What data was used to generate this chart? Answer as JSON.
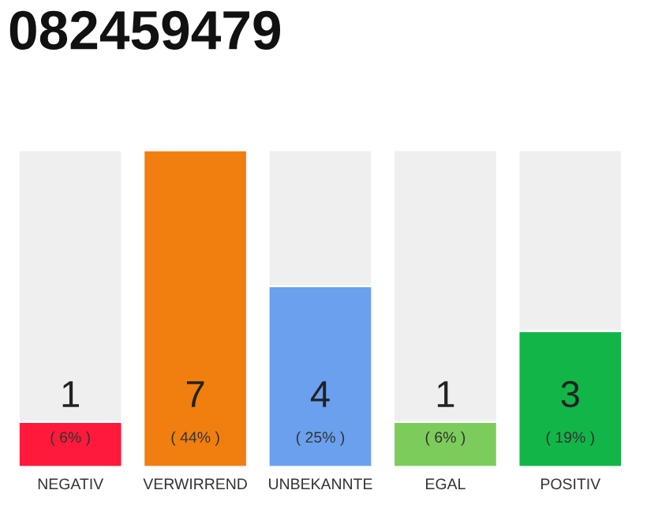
{
  "chart_data": {
    "type": "bar",
    "title": "082459479",
    "categories": [
      "NEGATIV",
      "VERWIRREND",
      "UNBEKANNTE",
      "EGAL",
      "POSITIV"
    ],
    "stacked": true,
    "series": [
      {
        "colors": [
          "#ff1a3c",
          "#f07f0f",
          "#6aa0ee",
          "#7ccc5c",
          "#12b548"
        ],
        "values": [
          1,
          7,
          4,
          1,
          3
        ],
        "value_labels": [
          "1",
          "7",
          "4",
          "1",
          "3"
        ]
      },
      {
        "color": "#efefef",
        "values": [
          6,
          0,
          3,
          6,
          4
        ]
      }
    ],
    "annotations": [
      "( 6% )",
      "( 44% )",
      "( 25% )",
      "( 6% )",
      "( 19% )"
    ]
  }
}
